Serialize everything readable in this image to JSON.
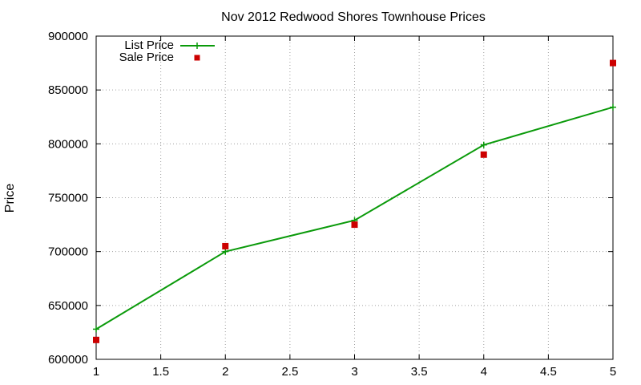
{
  "chart_data": {
    "type": "line",
    "title": "Nov 2012 Redwood Shores Townhouse Prices",
    "xlabel": "",
    "ylabel": "Price",
    "xlim": [
      1,
      5
    ],
    "ylim": [
      600000,
      900000
    ],
    "x_ticks": [
      "1",
      "1.5",
      "2",
      "2.5",
      "3",
      "3.5",
      "4",
      "4.5",
      "5"
    ],
    "y_ticks": [
      "600000",
      "650000",
      "700000",
      "750000",
      "800000",
      "850000",
      "900000"
    ],
    "grid": true,
    "legend_position": "top-left",
    "series": [
      {
        "name": "List Price",
        "style": "line-with-plus-markers",
        "color": "#0a9a0a",
        "x": [
          1,
          2,
          3,
          4,
          5
        ],
        "values": [
          628000,
          700000,
          729000,
          799000,
          834000
        ]
      },
      {
        "name": "Sale Price",
        "style": "square-points",
        "color": "#cc0000",
        "x": [
          1,
          2,
          3,
          4,
          5
        ],
        "values": [
          618000,
          705000,
          725000,
          790000,
          875000
        ]
      }
    ]
  }
}
